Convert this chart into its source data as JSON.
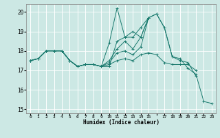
{
  "xlabel": "Humidex (Indice chaleur)",
  "ylabel": "",
  "background_color": "#cce8e4",
  "grid_color": "#ffffff",
  "line_color": "#1a7a6e",
  "xlim": [
    -0.5,
    23.5
  ],
  "ylim": [
    14.8,
    20.4
  ],
  "yticks": [
    15,
    16,
    17,
    18,
    19,
    20
  ],
  "xtick_labels": [
    "0",
    "1",
    "2",
    "3",
    "4",
    "5",
    "6",
    "7",
    "8",
    "9",
    "10",
    "11",
    "12",
    "13",
    "14",
    "15",
    "",
    "17",
    "18",
    "19",
    "20",
    "21",
    "22",
    "23"
  ],
  "series": [
    [
      17.5,
      17.6,
      18.0,
      18.0,
      18.0,
      17.5,
      17.2,
      17.3,
      17.3,
      17.2,
      17.2,
      18.5,
      18.7,
      18.7,
      19.2,
      19.7,
      19.9,
      19.2,
      17.7,
      17.6,
      17.1,
      16.8,
      15.4,
      15.3
    ],
    [
      17.5,
      17.6,
      18.0,
      18.0,
      18.0,
      17.5,
      17.2,
      17.3,
      17.3,
      17.2,
      18.4,
      20.2,
      18.7,
      19.0,
      18.7,
      19.7,
      null,
      null,
      null,
      null,
      null,
      null,
      null,
      null
    ],
    [
      17.5,
      17.6,
      18.0,
      18.0,
      18.0,
      17.5,
      17.2,
      17.3,
      17.3,
      17.2,
      17.5,
      18.1,
      18.5,
      18.1,
      18.7,
      19.7,
      null,
      null,
      null,
      null,
      null,
      null,
      null,
      null
    ],
    [
      17.5,
      17.6,
      18.0,
      18.0,
      18.0,
      17.5,
      17.2,
      17.3,
      17.3,
      17.2,
      17.4,
      17.9,
      18.0,
      17.8,
      18.2,
      19.7,
      19.9,
      19.2,
      17.7,
      17.5,
      17.4,
      16.7,
      null,
      null
    ],
    [
      17.5,
      17.6,
      18.0,
      18.0,
      18.0,
      17.5,
      17.2,
      17.3,
      17.3,
      17.2,
      17.3,
      17.5,
      17.6,
      17.5,
      17.8,
      17.9,
      17.8,
      17.4,
      17.3,
      17.3,
      17.3,
      17.0,
      null,
      null
    ]
  ]
}
